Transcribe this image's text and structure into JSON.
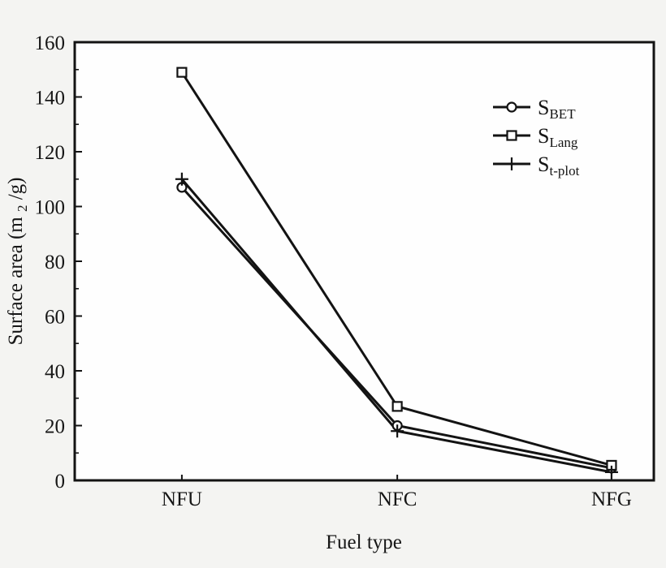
{
  "figure": {
    "background": "#f4f4f2",
    "plot_background": "#fefefe",
    "stroke_color": "#131313"
  },
  "chart_data": {
    "type": "line",
    "title": "",
    "xlabel": "Fuel type",
    "ylabel": "Surface area (m2/g)",
    "ylabel_parts": {
      "pre": "Surface area (m",
      "sub": "2",
      "post": "/g)"
    },
    "categories": [
      "NFU",
      "NFC",
      "NFG"
    ],
    "series": [
      {
        "name": "S_BET",
        "label_main": "S",
        "label_sub": "BET",
        "marker": "circle",
        "values": [
          107,
          20,
          4.5
        ]
      },
      {
        "name": "S_Lang",
        "label_main": "S",
        "label_sub": "Lang",
        "marker": "square",
        "values": [
          149,
          27,
          5.5
        ]
      },
      {
        "name": "S_t-plot",
        "label_main": "S",
        "label_sub": "t-plot",
        "marker": "plus",
        "values": [
          110,
          18,
          3
        ]
      }
    ],
    "ylim": [
      0,
      160
    ],
    "yticks": [
      0,
      20,
      40,
      60,
      80,
      100,
      120,
      140,
      160
    ],
    "minor_ytick_step": 10,
    "grid": false,
    "legend_position": "upper-right-inside",
    "line_color": "#131313",
    "marker_fill": "#ffffff"
  }
}
